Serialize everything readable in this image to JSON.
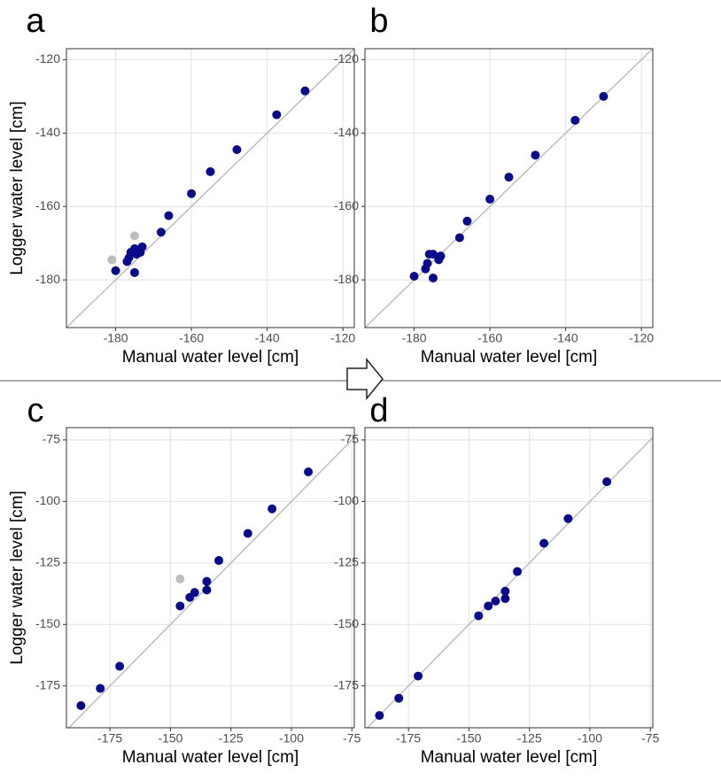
{
  "chart_data": [
    {
      "type": "scatter",
      "title": "a",
      "x_label": "Manual water level [cm]",
      "y_label": "Logger water level [cm]",
      "xlim": [
        -193,
        -117
      ],
      "ylim": [
        -193,
        -117
      ],
      "xticks": [
        -180,
        -160,
        -140,
        -120
      ],
      "yticks": [
        -180,
        -160,
        -140,
        -120
      ],
      "grid": true,
      "identity_line": true,
      "series": [
        {
          "color": "#0a0a8c",
          "x": [
            -130,
            -137.5,
            -148,
            -155,
            -160,
            -166,
            -168,
            -173,
            -173.5,
            -174.5,
            -175,
            -176,
            -176.5,
            -177,
            -175,
            -180
          ],
          "y": [
            -128.5,
            -135,
            -144.5,
            -150.5,
            -156.5,
            -162.5,
            -167,
            -171,
            -172.5,
            -173,
            -171.5,
            -172.5,
            -174,
            -175,
            -178,
            -177.5
          ]
        },
        {
          "color": "#bdbdbd",
          "x": [
            -181,
            -175
          ],
          "y": [
            -174.5,
            -168
          ]
        }
      ]
    },
    {
      "type": "scatter",
      "title": "b",
      "x_label": "Manual water level [cm]",
      "xlim": [
        -193,
        -117
      ],
      "ylim": [
        -193,
        -117
      ],
      "xticks": [
        -180,
        -160,
        -140,
        -120
      ],
      "yticks": [
        -180,
        -160,
        -140,
        -120
      ],
      "grid": true,
      "identity_line": true,
      "series": [
        {
          "color": "#0a0a8c",
          "x": [
            -130,
            -137.5,
            -148,
            -155,
            -160,
            -166,
            -168,
            -173,
            -173.5,
            -175,
            -176,
            -176.5,
            -177,
            -175,
            -180
          ],
          "y": [
            -130,
            -136.5,
            -146,
            -152,
            -158,
            -164,
            -168.5,
            -173.5,
            -174.5,
            -173,
            -173,
            -175.5,
            -177,
            -179.5,
            -179
          ]
        }
      ]
    },
    {
      "type": "scatter",
      "title": "c",
      "x_label": "Manual water level [cm]",
      "y_label": "Logger water level [cm]",
      "xlim": [
        -193,
        -74
      ],
      "ylim": [
        -192,
        -70
      ],
      "xticks": [
        -175,
        -150,
        -125,
        -100,
        -75
      ],
      "yticks": [
        -175,
        -150,
        -125,
        -100,
        -75
      ],
      "grid": true,
      "identity_line": true,
      "series": [
        {
          "color": "#0a0a8c",
          "x": [
            -93,
            -108,
            -118,
            -130,
            -135,
            -135,
            -140,
            -142,
            -146,
            -171,
            -179,
            -187
          ],
          "y": [
            -88,
            -103,
            -113,
            -124,
            -132.5,
            -136,
            -137,
            -139,
            -142.5,
            -167,
            -176,
            -183
          ]
        },
        {
          "color": "#bdbdbd",
          "x": [
            -146
          ],
          "y": [
            -131.5
          ]
        }
      ]
    },
    {
      "type": "scatter",
      "title": "d",
      "x_label": "Manual water level [cm]",
      "xlim": [
        -193,
        -74
      ],
      "ylim": [
        -192,
        -70
      ],
      "xticks": [
        -175,
        -150,
        -125,
        -100,
        -75
      ],
      "yticks": [
        -175,
        -150,
        -125,
        -100,
        -75
      ],
      "grid": true,
      "identity_line": true,
      "series": [
        {
          "color": "#0a0a8c",
          "x": [
            -93,
            -109,
            -119,
            -130,
            -135,
            -135,
            -139,
            -142,
            -146,
            -171,
            -179,
            -187
          ],
          "y": [
            -92,
            -107,
            -117,
            -128.5,
            -136.5,
            -139.5,
            -140.5,
            -142.5,
            -146.5,
            -171,
            -180,
            -187
          ]
        }
      ]
    }
  ]
}
